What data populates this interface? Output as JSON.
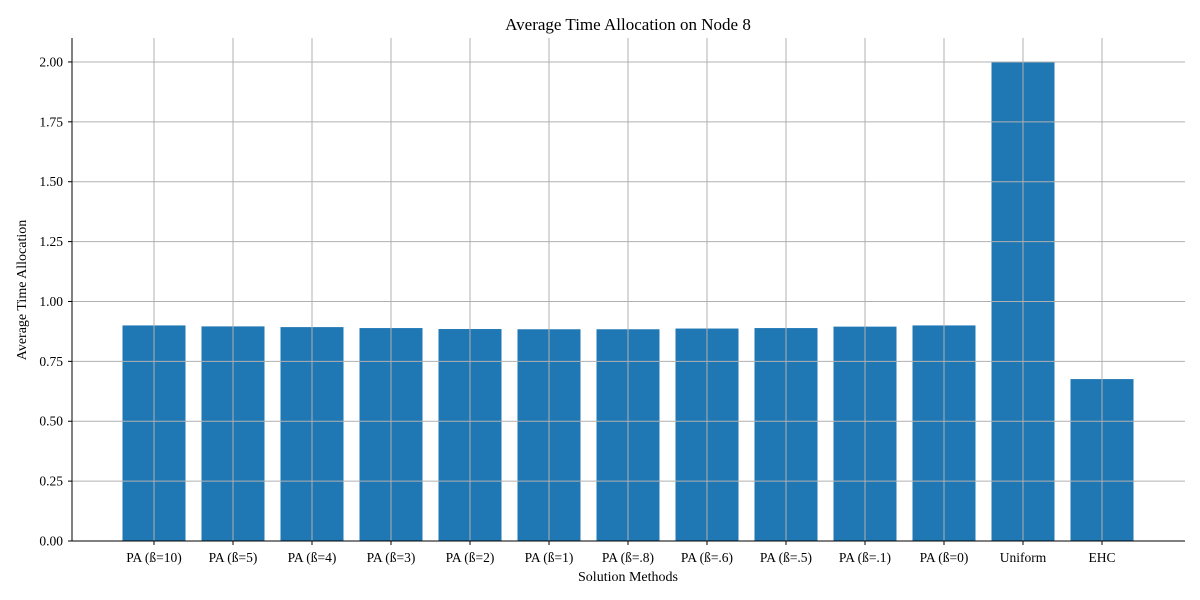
{
  "chart_data": {
    "type": "bar",
    "title": "Average Time Allocation on Node 8",
    "xlabel": "Solution Methods",
    "ylabel": "Average Time Allocation",
    "categories": [
      "PA (ß=10)",
      "PA (ß=5)",
      "PA (ß=4)",
      "PA (ß=3)",
      "PA (ß=2)",
      "PA (ß=1)",
      "PA (ß=.8)",
      "PA (ß=.6)",
      "PA (ß=.5)",
      "PA (ß=.1)",
      "PA (ß=0)",
      "Uniform",
      "EHC"
    ],
    "values": [
      0.9,
      0.896,
      0.893,
      0.889,
      0.885,
      0.884,
      0.884,
      0.887,
      0.889,
      0.895,
      0.9,
      2.0,
      0.676
    ],
    "ylim": [
      0,
      2.1
    ],
    "yticks": [
      "0.00",
      "0.25",
      "0.50",
      "0.75",
      "1.00",
      "1.25",
      "1.50",
      "1.75",
      "2.00"
    ],
    "grid": true,
    "bar_color": "#1f77b4"
  }
}
